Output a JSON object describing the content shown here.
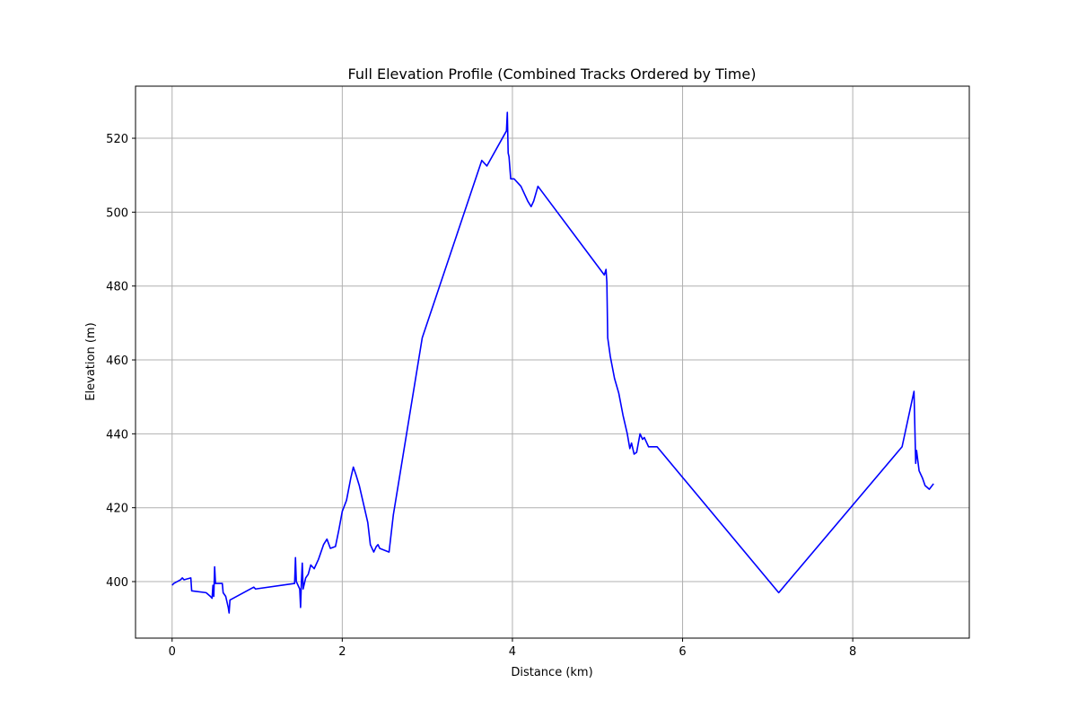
{
  "chart_data": {
    "type": "line",
    "title": "Full Elevation Profile (Combined Tracks Ordered by Time)",
    "xlabel": "Distance (km)",
    "ylabel": "Elevation (m)",
    "xlim": [
      -0.43,
      9.37
    ],
    "ylim": [
      384.7,
      534.1
    ],
    "xticks": [
      0,
      2,
      4,
      6,
      8
    ],
    "yticks": [
      400,
      420,
      440,
      460,
      480,
      500,
      520
    ],
    "grid": true,
    "series": [
      {
        "name": "Elevation",
        "color": "#0000ff",
        "x": [
          0,
          0.02,
          0.1,
          0.12,
          0.14,
          0.22,
          0.23,
          0.4,
          0.45,
          0.47,
          0.48,
          0.49,
          0.5,
          0.51,
          0.59,
          0.6,
          0.63,
          0.66,
          0.67,
          0.68,
          0.96,
          0.98,
          1.44,
          1.45,
          1.46,
          1.5,
          1.51,
          1.52,
          1.53,
          1.54,
          1.57,
          1.6,
          1.63,
          1.67,
          1.72,
          1.78,
          1.82,
          1.86,
          1.92,
          1.96,
          2.0,
          2.05,
          2.1,
          2.13,
          2.16,
          2.2,
          2.25,
          2.3,
          2.33,
          2.37,
          2.4,
          2.42,
          2.44,
          2.55,
          2.6,
          2.94,
          3.64,
          3.7,
          3.93,
          3.94,
          3.95,
          3.96,
          3.98,
          4.02,
          4.1,
          4.18,
          4.22,
          4.25,
          4.3,
          5.08,
          5.1,
          5.11,
          5.12,
          5.15,
          5.2,
          5.25,
          5.3,
          5.35,
          5.38,
          5.4,
          5.43,
          5.46,
          5.5,
          5.53,
          5.55,
          5.6,
          5.7,
          7.13,
          8.58,
          8.72,
          8.74,
          8.75,
          8.78,
          8.82,
          8.85,
          8.9,
          8.95
        ],
        "values": [
          399,
          399.5,
          400.5,
          401,
          400.5,
          401,
          397.5,
          397,
          396,
          395.5,
          399,
          396,
          404,
          399.5,
          399.5,
          397,
          396,
          393,
          391.5,
          395,
          398.5,
          398,
          399.5,
          406.5,
          400,
          398,
          393,
          400,
          405,
          398,
          401,
          402,
          404.5,
          403.5,
          406,
          410,
          411.5,
          409,
          409.5,
          414,
          419,
          422,
          428,
          431,
          429,
          426,
          421,
          416,
          410,
          408,
          409.5,
          410,
          409,
          408,
          418,
          466,
          514,
          512.5,
          522,
          527,
          516,
          515,
          509,
          509,
          507,
          503,
          501.5,
          503,
          507,
          483,
          484.5,
          481,
          466,
          461,
          455,
          451,
          445,
          440,
          436,
          437.5,
          434.5,
          435,
          440,
          438.5,
          439,
          436.5,
          436.5,
          397,
          436.5,
          451.5,
          432,
          435.5,
          430,
          428,
          426,
          425,
          426.5
        ]
      }
    ]
  }
}
